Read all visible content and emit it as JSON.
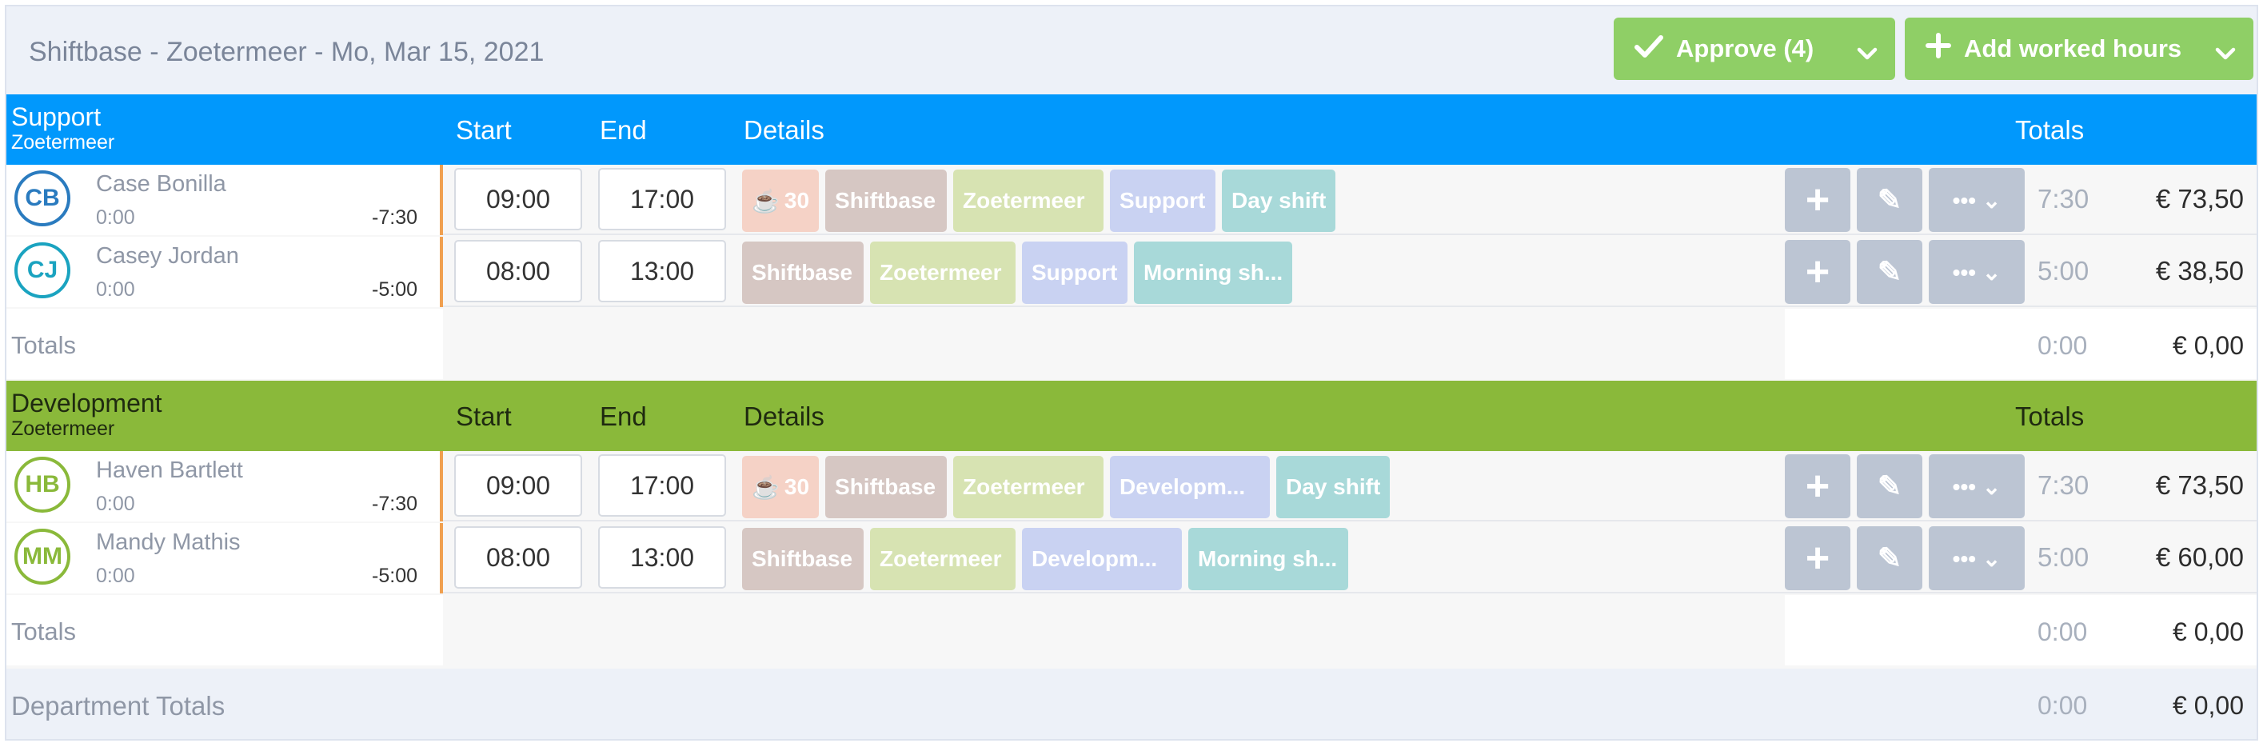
{
  "header": {
    "title": "Shiftbase - Zoetermeer - Mo, Mar 15, 2021",
    "approve_label": "Approve (4)",
    "add_label": "Add worked hours"
  },
  "columns": {
    "start": "Start",
    "end": "End",
    "details": "Details",
    "totals": "Totals"
  },
  "colors": {
    "support_header": "#0198fc",
    "development_header": "#8ab93a",
    "button_green": "#8fcf66",
    "break_chip": "#f5d2c6",
    "chip_shiftbase": "#d6c7c3",
    "chip_location": "#d7e3b2",
    "chip_department": "#c9d2f2",
    "chip_shift": "#a8d9d9"
  },
  "departments": [
    {
      "name": "Support",
      "location": "Zoetermeer",
      "employees": [
        {
          "initials": "CB",
          "name": "Case Bonilla",
          "sub": "0:00",
          "diff": "-7:30",
          "start": "09:00",
          "end": "17:00",
          "break": "30",
          "chips": [
            "Shiftbase",
            "Zoetermeer",
            "Support",
            "Day shift"
          ],
          "hours": "7:30",
          "amount": "€ 73,50"
        },
        {
          "initials": "CJ",
          "name": "Casey Jordan",
          "sub": "0:00",
          "diff": "-5:00",
          "start": "08:00",
          "end": "13:00",
          "break": "",
          "chips": [
            "Shiftbase",
            "Zoetermeer",
            "Support",
            "Morning sh..."
          ],
          "hours": "5:00",
          "amount": "€ 38,50"
        }
      ],
      "totals": {
        "label": "Totals",
        "hours": "0:00",
        "amount": "€ 0,00"
      }
    },
    {
      "name": "Development",
      "location": "Zoetermeer",
      "employees": [
        {
          "initials": "HB",
          "name": "Haven Bartlett",
          "sub": "0:00",
          "diff": "-7:30",
          "start": "09:00",
          "end": "17:00",
          "break": "30",
          "chips": [
            "Shiftbase",
            "Zoetermeer",
            "Developm...",
            "Day shift"
          ],
          "hours": "7:30",
          "amount": "€ 73,50"
        },
        {
          "initials": "MM",
          "name": "Mandy Mathis",
          "sub": "0:00",
          "diff": "-5:00",
          "start": "08:00",
          "end": "13:00",
          "break": "",
          "chips": [
            "Shiftbase",
            "Zoetermeer",
            "Developm...",
            "Morning sh..."
          ],
          "hours": "5:00",
          "amount": "€ 60,00"
        }
      ],
      "totals": {
        "label": "Totals",
        "hours": "0:00",
        "amount": "€ 0,00"
      }
    }
  ],
  "department_totals": {
    "label": "Department Totals",
    "hours": "0:00",
    "amount": "€ 0,00"
  }
}
